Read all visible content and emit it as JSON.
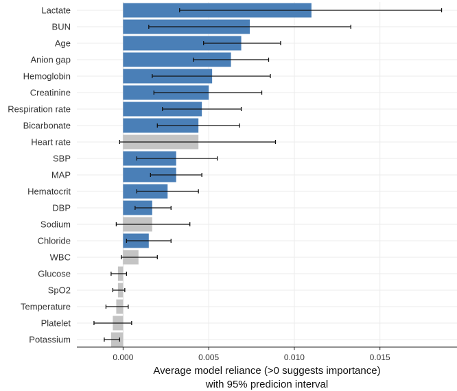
{
  "chart_data": {
    "type": "bar",
    "orientation": "horizontal",
    "title": "",
    "xlabel_lines": [
      "Average model reliance (>0 suggests importance)",
      "with 95% predicion interval"
    ],
    "ylabel": "",
    "xlim": [
      -0.0027,
      0.0195
    ],
    "xticks": [
      0.0,
      0.005,
      0.01,
      0.015
    ],
    "xtick_labels": [
      "0.000",
      "0.005",
      "0.010",
      "0.015"
    ],
    "grid": true,
    "legend": "none",
    "colors": {
      "significant": "#4a7fb7",
      "not_significant": "#c4c4c4",
      "error_bar": "#111111",
      "grid": "#ebebeb",
      "zero_line": "#dddddd"
    },
    "bars": [
      {
        "label": "Lactate",
        "value": 0.011,
        "lower": 0.0033,
        "upper": 0.0186,
        "significant": true
      },
      {
        "label": "BUN",
        "value": 0.0074,
        "lower": 0.0015,
        "upper": 0.0133,
        "significant": true
      },
      {
        "label": "Age",
        "value": 0.0069,
        "lower": 0.0047,
        "upper": 0.0092,
        "significant": true
      },
      {
        "label": "Anion gap",
        "value": 0.0063,
        "lower": 0.0041,
        "upper": 0.0085,
        "significant": true
      },
      {
        "label": "Hemoglobin",
        "value": 0.0052,
        "lower": 0.0017,
        "upper": 0.0086,
        "significant": true
      },
      {
        "label": "Creatinine",
        "value": 0.005,
        "lower": 0.0018,
        "upper": 0.0081,
        "significant": true
      },
      {
        "label": "Respiration rate",
        "value": 0.0046,
        "lower": 0.0023,
        "upper": 0.0069,
        "significant": true
      },
      {
        "label": "Bicarbonate",
        "value": 0.0044,
        "lower": 0.002,
        "upper": 0.0068,
        "significant": true
      },
      {
        "label": "Heart rate",
        "value": 0.0044,
        "lower": -0.0002,
        "upper": 0.0089,
        "significant": false
      },
      {
        "label": "SBP",
        "value": 0.0031,
        "lower": 0.0008,
        "upper": 0.0055,
        "significant": true
      },
      {
        "label": "MAP",
        "value": 0.0031,
        "lower": 0.0016,
        "upper": 0.0046,
        "significant": true
      },
      {
        "label": "Hematocrit",
        "value": 0.0026,
        "lower": 0.0008,
        "upper": 0.0044,
        "significant": true
      },
      {
        "label": "DBP",
        "value": 0.0017,
        "lower": 0.0007,
        "upper": 0.0028,
        "significant": true
      },
      {
        "label": "Sodium",
        "value": 0.0017,
        "lower": -0.0004,
        "upper": 0.0039,
        "significant": false
      },
      {
        "label": "Chloride",
        "value": 0.0015,
        "lower": 0.0002,
        "upper": 0.0028,
        "significant": true
      },
      {
        "label": "WBC",
        "value": 0.0009,
        "lower": -0.0001,
        "upper": 0.002,
        "significant": false
      },
      {
        "label": "Glucose",
        "value": -0.0003,
        "lower": -0.0007,
        "upper": 0.0002,
        "significant": false
      },
      {
        "label": "SpO2",
        "value": -0.0003,
        "lower": -0.0006,
        "upper": 0.0001,
        "significant": false
      },
      {
        "label": "Temperature",
        "value": -0.0004,
        "lower": -0.001,
        "upper": 0.0003,
        "significant": false
      },
      {
        "label": "Platelet",
        "value": -0.0006,
        "lower": -0.0017,
        "upper": 0.0005,
        "significant": false
      },
      {
        "label": "Potassium",
        "value": -0.0007,
        "lower": -0.0011,
        "upper": -0.0002,
        "significant": false
      }
    ]
  }
}
